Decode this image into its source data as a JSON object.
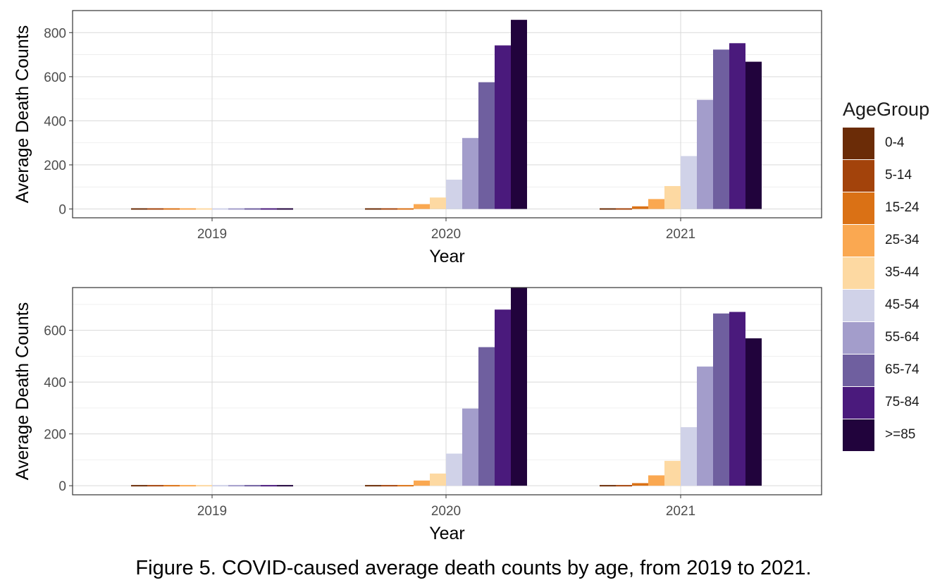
{
  "chart_data": [
    {
      "type": "bar",
      "categories": [
        "2019",
        "2020",
        "2021"
      ],
      "xlabel": "Year",
      "ylabel": "Average Death Counts",
      "ylim": [
        -40,
        900
      ],
      "yticks": [
        0,
        200,
        400,
        600,
        800
      ],
      "grid": true,
      "legend_position": "right",
      "series": [
        {
          "name": "0-4",
          "values": [
            0,
            0,
            1
          ]
        },
        {
          "name": "5-14",
          "values": [
            0,
            1,
            1
          ]
        },
        {
          "name": "15-24",
          "values": [
            0,
            5,
            12
          ]
        },
        {
          "name": "25-34",
          "values": [
            0,
            22,
            45
          ]
        },
        {
          "name": "35-44",
          "values": [
            0,
            52,
            104
          ]
        },
        {
          "name": "45-54",
          "values": [
            0,
            133,
            240
          ]
        },
        {
          "name": "55-64",
          "values": [
            0,
            322,
            495
          ]
        },
        {
          "name": "65-74",
          "values": [
            0,
            575,
            723
          ]
        },
        {
          "name": "75-84",
          "values": [
            0,
            742,
            752
          ]
        },
        {
          "name": ">=85",
          "values": [
            0,
            858,
            668
          ]
        }
      ]
    },
    {
      "type": "bar",
      "categories": [
        "2019",
        "2020",
        "2021"
      ],
      "xlabel": "Year",
      "ylabel": "Average Death Counts",
      "ylim": [
        -35,
        765
      ],
      "yticks": [
        0,
        200,
        400,
        600
      ],
      "grid": true,
      "legend_position": "right",
      "series": [
        {
          "name": "0-4",
          "values": [
            0,
            0,
            1
          ]
        },
        {
          "name": "5-14",
          "values": [
            0,
            1,
            1
          ]
        },
        {
          "name": "15-24",
          "values": [
            0,
            5,
            10
          ]
        },
        {
          "name": "25-34",
          "values": [
            0,
            20,
            40
          ]
        },
        {
          "name": "35-44",
          "values": [
            0,
            47,
            96
          ]
        },
        {
          "name": "45-54",
          "values": [
            0,
            124,
            226
          ]
        },
        {
          "name": "55-64",
          "values": [
            0,
            298,
            460
          ]
        },
        {
          "name": "65-74",
          "values": [
            0,
            535,
            665
          ]
        },
        {
          "name": "75-84",
          "values": [
            0,
            680,
            671
          ]
        },
        {
          "name": ">=85",
          "values": [
            0,
            764,
            569
          ]
        }
      ]
    }
  ],
  "legend": {
    "title": "AgeGroup",
    "items": [
      {
        "label": "0-4",
        "color": "#6b2c07"
      },
      {
        "label": "5-14",
        "color": "#a3430b"
      },
      {
        "label": "15-24",
        "color": "#da7115"
      },
      {
        "label": "25-34",
        "color": "#faa851"
      },
      {
        "label": "35-44",
        "color": "#fdd9a2"
      },
      {
        "label": "45-54",
        "color": "#d0d2e8"
      },
      {
        "label": "55-64",
        "color": "#a39dcb"
      },
      {
        "label": "65-74",
        "color": "#6f5f9f"
      },
      {
        "label": "75-84",
        "color": "#4a1a7c"
      },
      {
        "label": ">=85",
        "color": "#21033c"
      }
    ]
  },
  "caption": "Figure 5. COVID-caused average death counts by age, from 2019 to 2021."
}
